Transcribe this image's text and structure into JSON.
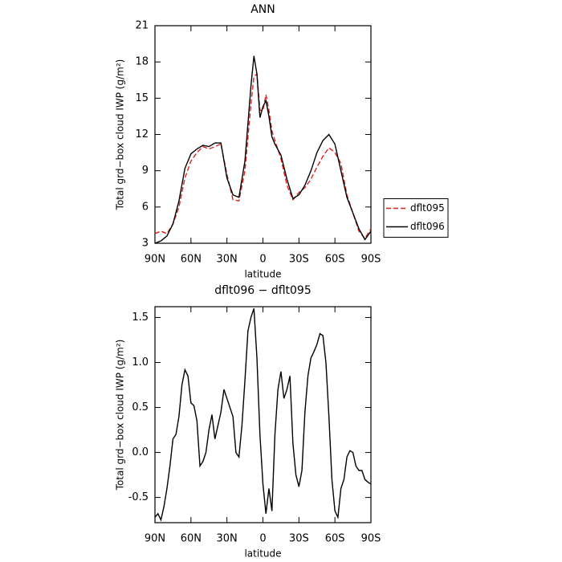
{
  "chart_data": [
    {
      "type": "line",
      "title": "ANN",
      "xlabel": "latitude",
      "ylabel": "Total grd−box cloud IWP (g/m²)",
      "x": [
        90,
        85,
        80,
        75,
        70,
        65,
        60,
        55,
        50,
        45,
        40,
        35,
        30,
        25,
        20,
        15,
        10,
        7.5,
        5,
        2.5,
        0,
        -2.5,
        -5,
        -7.5,
        -10,
        -15,
        -20,
        -25,
        -30,
        -35,
        -40,
        -45,
        -50,
        -55,
        -60,
        -65,
        -70,
        -75,
        -80,
        -85,
        -90
      ],
      "xlim": [
        90,
        -90
      ],
      "xticks": [
        {
          "value": 90,
          "label": "90N"
        },
        {
          "value": 60,
          "label": "60N"
        },
        {
          "value": 30,
          "label": "30N"
        },
        0,
        {
          "value": -30,
          "label": "30S"
        },
        {
          "value": -60,
          "label": "60S"
        },
        {
          "value": -90,
          "label": "90S"
        }
      ],
      "ylim": [
        3,
        21
      ],
      "yticks": [
        3,
        6,
        9,
        12,
        15,
        18,
        21
      ],
      "legend": "right",
      "series": [
        {
          "name": "dflt095",
          "color": "#e0201b",
          "linestyle": "dashed",
          "values": [
            3.8,
            4.0,
            3.8,
            4.6,
            6.0,
            8.4,
            9.8,
            10.5,
            11.0,
            10.8,
            11.0,
            11.2,
            8.7,
            6.6,
            6.5,
            9.0,
            14.5,
            16.8,
            17.0,
            14.0,
            14.0,
            15.3,
            14.0,
            12.3,
            11.5,
            10.0,
            7.8,
            6.6,
            7.2,
            7.6,
            8.3,
            9.3,
            10.2,
            10.9,
            10.5,
            9.6,
            7.0,
            5.5,
            4.0,
            3.4,
            4.2
          ]
        },
        {
          "name": "dflt096",
          "color": "#000000",
          "linestyle": "solid",
          "values": [
            3.0,
            3.2,
            3.6,
            4.6,
            6.5,
            9.2,
            10.4,
            10.8,
            11.1,
            11.0,
            11.3,
            11.3,
            8.4,
            7.0,
            6.8,
            9.8,
            16.0,
            18.5,
            17.0,
            13.4,
            14.3,
            14.8,
            13.5,
            11.8,
            11.2,
            10.3,
            8.3,
            6.7,
            7.0,
            7.8,
            9.0,
            10.5,
            11.5,
            12.0,
            11.2,
            9.0,
            6.8,
            5.5,
            4.2,
            3.3,
            4.0
          ]
        }
      ]
    },
    {
      "type": "line",
      "title": "dflt096 − dflt095",
      "xlabel": "latitude",
      "ylabel": "Total grd−box cloud IWP (g/m²)",
      "x": [
        90,
        87.5,
        85,
        82.5,
        80,
        77.5,
        75,
        72.5,
        70,
        67.5,
        65,
        62.5,
        60,
        57.5,
        55,
        52.5,
        50,
        47.5,
        45,
        42.5,
        40,
        37.5,
        35,
        32.5,
        30,
        27.5,
        25,
        22.5,
        20,
        17.5,
        15,
        12.5,
        10,
        7.5,
        5,
        2.5,
        0,
        -2.5,
        -5,
        -7.5,
        -10,
        -12.5,
        -15,
        -17.5,
        -20,
        -22.5,
        -25,
        -27.5,
        -30,
        -32.5,
        -35,
        -37.5,
        -40,
        -42.5,
        -45,
        -47.5,
        -50,
        -52.5,
        -55,
        -57.5,
        -60,
        -62.5,
        -65,
        -67.5,
        -70,
        -72.5,
        -75,
        -77.5,
        -80,
        -82.5,
        -85,
        -87.5,
        -90
      ],
      "xlim": [
        90,
        -90
      ],
      "xticks": [
        {
          "value": 90,
          "label": "90N"
        },
        {
          "value": 60,
          "label": "60N"
        },
        {
          "value": 30,
          "label": "30N"
        },
        0,
        {
          "value": -30,
          "label": "30S"
        },
        {
          "value": -60,
          "label": "60S"
        },
        {
          "value": -90,
          "label": "90S"
        }
      ],
      "ylim": [
        -0.78,
        1.62
      ],
      "yticks": [
        -0.5,
        {
          "value": 0,
          "label": "0.0"
        },
        0.5,
        {
          "value": 1,
          "label": "1.0"
        },
        1.5
      ],
      "series": [
        {
          "color": "#000000",
          "linestyle": "solid",
          "values": [
            -0.72,
            -0.68,
            -0.75,
            -0.6,
            -0.4,
            -0.15,
            0.15,
            0.2,
            0.4,
            0.75,
            0.92,
            0.85,
            0.55,
            0.52,
            0.35,
            -0.15,
            -0.1,
            0.0,
            0.25,
            0.42,
            0.15,
            0.3,
            0.45,
            0.7,
            0.6,
            0.5,
            0.4,
            0.0,
            -0.05,
            0.3,
            0.8,
            1.35,
            1.5,
            1.6,
            1.05,
            0.2,
            -0.35,
            -0.68,
            -0.4,
            -0.65,
            0.2,
            0.7,
            0.9,
            0.6,
            0.7,
            0.85,
            0.1,
            -0.25,
            -0.38,
            -0.2,
            0.45,
            0.85,
            1.05,
            1.12,
            1.2,
            1.32,
            1.3,
            1.0,
            0.4,
            -0.3,
            -0.65,
            -0.72,
            -0.4,
            -0.3,
            -0.05,
            0.02,
            0.0,
            -0.15,
            -0.2,
            -0.2,
            -0.3,
            -0.33,
            -0.35
          ]
        }
      ]
    }
  ]
}
